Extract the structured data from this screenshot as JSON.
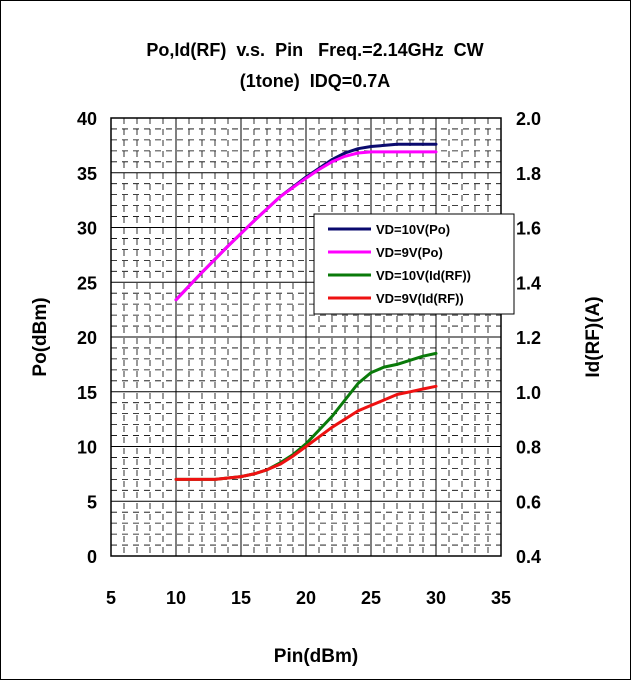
{
  "chart_data": {
    "type": "line",
    "title_line1": "Po,Id(RF)  v.s.  Pin   Freq.=2.14GHz  CW",
    "title_line2": "(1tone)  IDQ=0.7A",
    "xlabel": "Pin(dBm)",
    "ylabel_left": "Po(dBm)",
    "ylabel_right": "Id(RF)(A)",
    "xlim": [
      5,
      35
    ],
    "ylim_left": [
      0,
      40
    ],
    "ylim_right": [
      0.4,
      2.0
    ],
    "x_ticks": [
      "5",
      "10",
      "15",
      "20",
      "25",
      "30",
      "35"
    ],
    "y_left_ticks": [
      "0",
      "5",
      "10",
      "15",
      "20",
      "25",
      "30",
      "35",
      "40"
    ],
    "y_right_ticks": [
      "0.4",
      "0.6",
      "0.8",
      "1.0",
      "1.2",
      "1.4",
      "1.6",
      "1.8",
      "2.0"
    ],
    "grid": true,
    "legend_position": "center-right",
    "series": [
      {
        "name": "VD=10V(Po)",
        "color": "#0a0a6e",
        "axis": "left",
        "x": [
          10,
          12,
          14,
          16,
          18,
          20,
          21,
          22,
          23,
          24,
          25,
          26,
          27,
          28,
          29,
          30
        ],
        "y": [
          23.4,
          25.9,
          28.3,
          30.6,
          32.8,
          34.6,
          35.4,
          36.2,
          36.8,
          37.2,
          37.4,
          37.5,
          37.6,
          37.6,
          37.6,
          37.6
        ]
      },
      {
        "name": "VD=9V(Po)",
        "color": "#ff00ff",
        "axis": "left",
        "x": [
          10,
          12,
          14,
          16,
          18,
          20,
          21,
          22,
          23,
          24,
          25,
          26,
          27,
          28,
          29,
          30
        ],
        "y": [
          23.4,
          25.9,
          28.3,
          30.6,
          32.8,
          34.5,
          35.3,
          36.0,
          36.5,
          36.8,
          36.9,
          36.9,
          36.9,
          36.9,
          36.9,
          36.9
        ]
      },
      {
        "name": "VD=10V(Id(RF))",
        "color": "#0a7a0a",
        "axis": "right",
        "x": [
          10,
          11,
          12,
          13,
          14,
          15,
          16,
          17,
          18,
          19,
          20,
          21,
          22,
          23,
          24,
          25,
          26,
          27,
          28,
          29,
          30
        ],
        "y": [
          0.68,
          0.68,
          0.68,
          0.68,
          0.685,
          0.69,
          0.7,
          0.715,
          0.74,
          0.77,
          0.81,
          0.86,
          0.91,
          0.97,
          1.03,
          1.07,
          1.09,
          1.1,
          1.115,
          1.13,
          1.14
        ]
      },
      {
        "name": "VD=9V(Id(RF))",
        "color": "#ee1111",
        "axis": "right",
        "x": [
          10,
          11,
          12,
          13,
          14,
          15,
          16,
          17,
          18,
          19,
          20,
          21,
          22,
          23,
          24,
          25,
          26,
          27,
          28,
          29,
          30
        ],
        "y": [
          0.68,
          0.68,
          0.68,
          0.68,
          0.685,
          0.69,
          0.7,
          0.715,
          0.735,
          0.765,
          0.8,
          0.835,
          0.87,
          0.9,
          0.93,
          0.95,
          0.97,
          0.99,
          1.0,
          1.01,
          1.02
        ]
      }
    ]
  }
}
